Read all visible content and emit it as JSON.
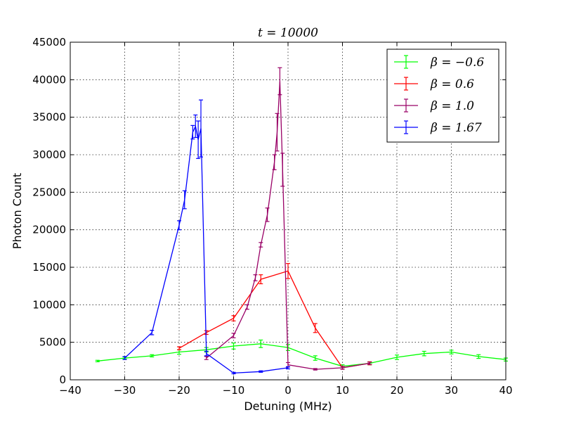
{
  "chart_data": {
    "type": "line",
    "title": "t = 10000",
    "xlabel": "Detuning (MHz)",
    "ylabel": "Photon Count",
    "xlim": [
      -40,
      40
    ],
    "ylim": [
      0,
      45000
    ],
    "xticks": [
      -40,
      -30,
      -20,
      -10,
      0,
      10,
      20,
      30,
      40
    ],
    "xtick_labels": [
      "−40",
      "−30",
      "−20",
      "−10",
      "0",
      "10",
      "20",
      "30",
      "40"
    ],
    "yticks": [
      0,
      5000,
      10000,
      15000,
      20000,
      25000,
      30000,
      35000,
      40000,
      45000
    ],
    "ytick_labels": [
      "0",
      "5000",
      "10000",
      "15000",
      "20000",
      "25000",
      "30000",
      "35000",
      "40000",
      "45000"
    ],
    "grid": true,
    "legend_position": "top-right",
    "series": [
      {
        "name": "β = −0.6",
        "color": "#00ff00",
        "points": [
          {
            "x": -35,
            "y": 2500,
            "err": 100
          },
          {
            "x": -30,
            "y": 2900,
            "err": 150
          },
          {
            "x": -25,
            "y": 3200,
            "err": 150
          },
          {
            "x": -20,
            "y": 3700,
            "err": 300
          },
          {
            "x": -15,
            "y": 4000,
            "err": 300
          },
          {
            "x": -10,
            "y": 4500,
            "err": 400
          },
          {
            "x": -5,
            "y": 4800,
            "err": 500
          },
          {
            "x": 0,
            "y": 4300,
            "err": 400
          },
          {
            "x": 5,
            "y": 2900,
            "err": 300
          },
          {
            "x": 10,
            "y": 1800,
            "err": 200
          },
          {
            "x": 15,
            "y": 2200,
            "err": 200
          },
          {
            "x": 20,
            "y": 3000,
            "err": 300
          },
          {
            "x": 25,
            "y": 3500,
            "err": 300
          },
          {
            "x": 30,
            "y": 3700,
            "err": 250
          },
          {
            "x": 35,
            "y": 3100,
            "err": 250
          },
          {
            "x": 40,
            "y": 2700,
            "err": 200
          }
        ]
      },
      {
        "name": "β = 0.6",
        "color": "#ff0000",
        "points": [
          {
            "x": -20,
            "y": 4200,
            "err": 200
          },
          {
            "x": -15,
            "y": 6300,
            "err": 250
          },
          {
            "x": -10,
            "y": 8200,
            "err": 350
          },
          {
            "x": -5,
            "y": 13400,
            "err": 600
          },
          {
            "x": 0,
            "y": 14500,
            "err": 1000
          },
          {
            "x": 5,
            "y": 6900,
            "err": 600
          },
          {
            "x": 10,
            "y": 1600,
            "err": 200
          },
          {
            "x": 15,
            "y": 2200,
            "err": 200
          }
        ]
      },
      {
        "name": "β = 1.0",
        "color": "#990066",
        "points": [
          {
            "x": -15,
            "y": 2900,
            "err": 200
          },
          {
            "x": -10,
            "y": 5900,
            "err": 300
          },
          {
            "x": -7.5,
            "y": 9700,
            "err": 300
          },
          {
            "x": -6,
            "y": 13600,
            "err": 400
          },
          {
            "x": -5,
            "y": 18000,
            "err": 300
          },
          {
            "x": -3.8,
            "y": 22000,
            "err": 900
          },
          {
            "x": -2.5,
            "y": 29000,
            "err": 1000
          },
          {
            "x": -2,
            "y": 33000,
            "err": 2500
          },
          {
            "x": -1.5,
            "y": 39800,
            "err": 1800
          },
          {
            "x": -1,
            "y": 28000,
            "err": 2200
          },
          {
            "x": 0,
            "y": 2000,
            "err": 300
          },
          {
            "x": 5,
            "y": 1400,
            "err": 100
          },
          {
            "x": 10,
            "y": 1600,
            "err": 200
          },
          {
            "x": 15,
            "y": 2200,
            "err": 150
          }
        ]
      },
      {
        "name": "β = 1.67",
        "color": "#0000ff",
        "points": [
          {
            "x": -30,
            "y": 2900,
            "err": 200
          },
          {
            "x": -25,
            "y": 6300,
            "err": 300
          },
          {
            "x": -20,
            "y": 20600,
            "err": 600
          },
          {
            "x": -19,
            "y": 24000,
            "err": 1200
          },
          {
            "x": -17.5,
            "y": 33000,
            "err": 900
          },
          {
            "x": -17,
            "y": 33800,
            "err": 1500
          },
          {
            "x": -16.5,
            "y": 32000,
            "err": 2500
          },
          {
            "x": -16,
            "y": 33500,
            "err": 3800
          },
          {
            "x": -15,
            "y": 3500,
            "err": 300
          },
          {
            "x": -10,
            "y": 900,
            "err": 100
          },
          {
            "x": -5,
            "y": 1100,
            "err": 100
          },
          {
            "x": 0,
            "y": 1600,
            "err": 150
          }
        ]
      }
    ]
  }
}
